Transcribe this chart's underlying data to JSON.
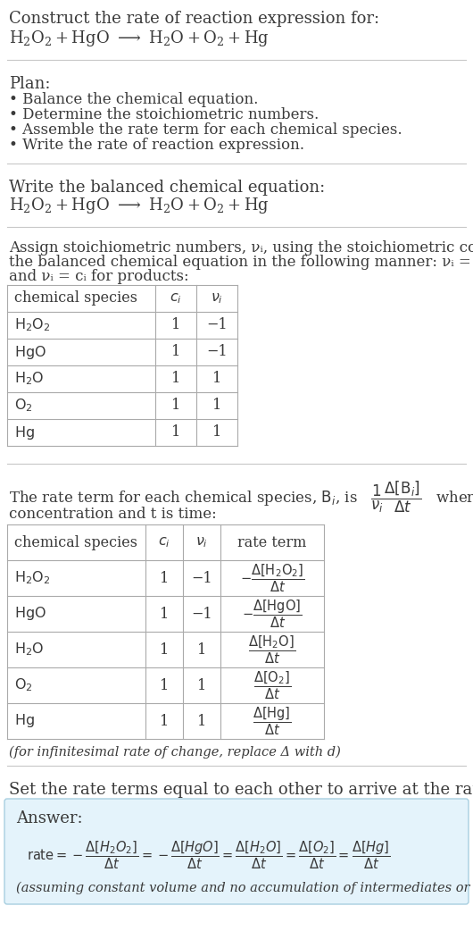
{
  "bg_color": "#ffffff",
  "text_color": "#3a3a3a",
  "title_line1": "Construct the rate of reaction expression for:",
  "plan_header": "Plan:",
  "plan_items": [
    "• Balance the chemical equation.",
    "• Determine the stoichiometric numbers.",
    "• Assemble the rate term for each chemical species.",
    "• Write the rate of reaction expression."
  ],
  "balanced_header": "Write the balanced chemical equation:",
  "assign_text1": "Assign stoichiometric numbers, νᵢ, using the stoichiometric coefficients, cᵢ, from",
  "assign_text2": "the balanced chemical equation in the following manner: νᵢ = −cᵢ for reactants",
  "assign_text3": "and νᵢ = cᵢ for products:",
  "table1_col_headers": [
    "chemical species",
    "cᵢ",
    "νᵢ"
  ],
  "table1_rows": [
    [
      "H₂O₂",
      "1",
      "−1"
    ],
    [
      "HgO",
      "1",
      "−1"
    ],
    [
      "H₂O",
      "1",
      "1"
    ],
    [
      "O₂",
      "1",
      "1"
    ],
    [
      "Hg",
      "1",
      "1"
    ]
  ],
  "rate_text1": "The rate term for each chemical species, Bᵢ, is",
  "rate_text2": "concentration and t is time:",
  "table2_col_headers": [
    "chemical species",
    "cᵢ",
    "νᵢ",
    "rate term"
  ],
  "table2_rows": [
    [
      "H₂O₂",
      "1",
      "−1"
    ],
    [
      "HgO",
      "1",
      "−1"
    ],
    [
      "H₂O",
      "1",
      "1"
    ],
    [
      "O₂",
      "1",
      "1"
    ],
    [
      "Hg",
      "1",
      "1"
    ]
  ],
  "infinitesimal_note": "(for infinitesimal rate of change, replace Δ with d)",
  "set_equal_text": "Set the rate terms equal to each other to arrive at the rate expression:",
  "answer_label": "Answer:",
  "answer_bg": "#e4f3fb",
  "answer_border": "#a8cfe0",
  "footnote": "(assuming constant volume and no accumulation of intermediates or side products)",
  "sep_color": "#c8c8c8",
  "table_line_color": "#aaaaaa"
}
